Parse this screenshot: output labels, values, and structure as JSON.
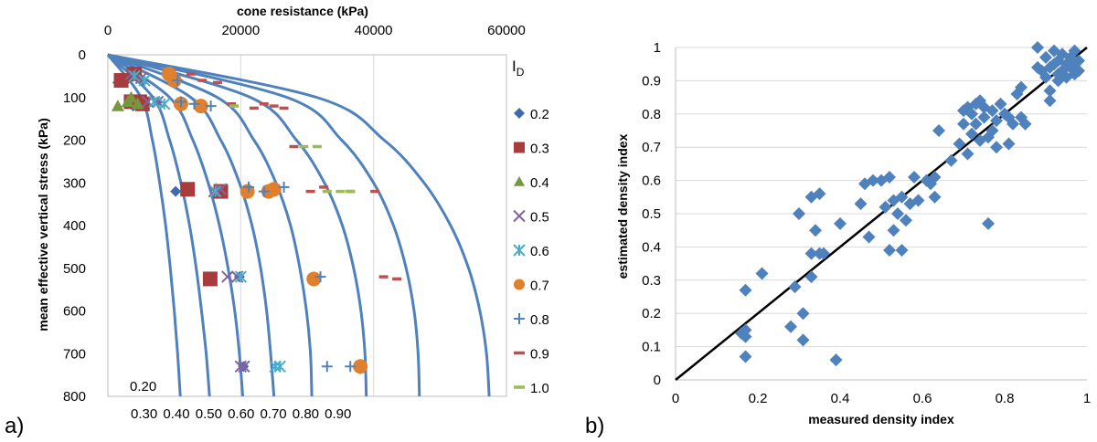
{
  "chart_data": [
    {
      "type": "scatter",
      "panel_label": "a)",
      "title": "",
      "xlabel": "cone resistance  (kPa)",
      "ylabel": "mean effective vertical stress (kPa)",
      "xlim": [
        0,
        60000
      ],
      "ylim": [
        0,
        800
      ],
      "x_ticks": [
        "0",
        "20000",
        "40000",
        "60000"
      ],
      "x_tick_values": [
        0,
        20000,
        40000,
        60000
      ],
      "y_ticks": [
        "0",
        "100",
        "200",
        "300",
        "400",
        "500",
        "600",
        "700",
        "800"
      ],
      "y_tick_values": [
        0,
        100,
        200,
        300,
        400,
        500,
        600,
        700,
        800
      ],
      "y_inverted": true,
      "x_axis_position": "top",
      "grid": "vertical",
      "legend_title": "I",
      "legend_title_sub": "D",
      "legend_position": "right",
      "colors": {
        "curve": "#4f81bd",
        "s020": "#3f6cae",
        "s030": "#a83b3b",
        "s040": "#77963f",
        "s050": "#8064a2",
        "s060": "#4bacc6",
        "s070": "#e07f2d",
        "s080": "#4f81bd",
        "s090": "#c0504d",
        "s100": "#9bbb59"
      },
      "curves": [
        {
          "label": "0.20",
          "q": [
            [
              0,
              0
            ],
            [
              100,
              5000
            ],
            [
              200,
              6700
            ],
            [
              300,
              7800
            ],
            [
              400,
              8700
            ],
            [
              500,
              9400
            ],
            [
              600,
              10000
            ],
            [
              700,
              10500
            ],
            [
              800,
              10900
            ]
          ]
        },
        {
          "label": "0.30",
          "q": [
            [
              0,
              0
            ],
            [
              100,
              6800
            ],
            [
              200,
              9300
            ],
            [
              300,
              11000
            ],
            [
              400,
              12300
            ],
            [
              500,
              13300
            ],
            [
              600,
              14100
            ],
            [
              700,
              14800
            ],
            [
              800,
              15300
            ]
          ]
        },
        {
          "label": "0.40",
          "q": [
            [
              0,
              0
            ],
            [
              100,
              9300
            ],
            [
              200,
              12800
            ],
            [
              300,
              15100
            ],
            [
              400,
              16800
            ],
            [
              500,
              18100
            ],
            [
              600,
              19100
            ],
            [
              700,
              19800
            ],
            [
              800,
              20300
            ]
          ]
        },
        {
          "label": "0.50",
          "q": [
            [
              0,
              0
            ],
            [
              100,
              12500
            ],
            [
              200,
              17000
            ],
            [
              300,
              19800
            ],
            [
              400,
              21700
            ],
            [
              500,
              23000
            ],
            [
              600,
              23900
            ],
            [
              700,
              24500
            ],
            [
              800,
              25000
            ]
          ]
        },
        {
          "label": "0.60",
          "q": [
            [
              0,
              0
            ],
            [
              100,
              16500
            ],
            [
              200,
              22000
            ],
            [
              300,
              25300
            ],
            [
              400,
              27500
            ],
            [
              500,
              28900
            ],
            [
              600,
              29900
            ],
            [
              700,
              30500
            ],
            [
              800,
              30700
            ]
          ]
        },
        {
          "label": "0.70",
          "q": [
            [
              0,
              0
            ],
            [
              100,
              21500
            ],
            [
              200,
              28400
            ],
            [
              300,
              32600
            ],
            [
              400,
              35300
            ],
            [
              500,
              37000
            ],
            [
              600,
              38100
            ],
            [
              700,
              38700
            ],
            [
              800,
              38900
            ]
          ]
        },
        {
          "label": "0.80",
          "q": [
            [
              0,
              0
            ],
            [
              100,
              27000
            ],
            [
              200,
              35200
            ],
            [
              300,
              40000
            ],
            [
              400,
              43000
            ],
            [
              500,
              44900
            ],
            [
              600,
              46100
            ],
            [
              700,
              46700
            ],
            [
              800,
              46900
            ]
          ]
        },
        {
          "label": "0.90",
          "q": [
            [
              0,
              0
            ],
            [
              100,
              31500
            ],
            [
              200,
              41600
            ],
            [
              300,
              47600
            ],
            [
              400,
              51600
            ],
            [
              500,
              54300
            ],
            [
              600,
              56000
            ],
            [
              700,
              57000
            ],
            [
              800,
              57400
            ]
          ]
        }
      ],
      "curve_label_rows": {
        "first": "0.20",
        "rest": "0.30 0.40 0.50 0.60 0.70 0.80 0.90"
      },
      "series": [
        {
          "name": "0.20",
          "marker": "diamond",
          "color": "#3f6cae",
          "points": [
            [
              1500,
              65
            ],
            [
              2000,
              55
            ],
            [
              2800,
              60
            ],
            [
              3200,
              110
            ],
            [
              3800,
              120
            ],
            [
              4200,
              45
            ],
            [
              5200,
              60
            ],
            [
              7500,
              110
            ],
            [
              10200,
              320
            ],
            [
              19800,
              520
            ],
            [
              20400,
              730
            ]
          ]
        },
        {
          "name": "0.30",
          "marker": "square",
          "color": "#a83b3b",
          "points": [
            [
              2000,
              60
            ],
            [
              3500,
              110
            ],
            [
              4000,
              45
            ],
            [
              4800,
              110
            ],
            [
              5200,
              115
            ],
            [
              12000,
              315
            ],
            [
              17000,
              320
            ],
            [
              15400,
              525
            ]
          ]
        },
        {
          "name": "0.40",
          "marker": "triangle",
          "color": "#77963f",
          "points": [
            [
              1500,
              120
            ],
            [
              3000,
              110
            ],
            [
              3500,
              100
            ],
            [
              4500,
              115
            ]
          ]
        },
        {
          "name": "0.50",
          "marker": "x",
          "color": "#8064a2",
          "points": [
            [
              3500,
              45
            ],
            [
              5000,
              55
            ],
            [
              6000,
              110
            ],
            [
              7500,
              110
            ],
            [
              16000,
              320
            ],
            [
              17000,
              315
            ],
            [
              18000,
              520
            ],
            [
              19500,
              520
            ],
            [
              20000,
              730
            ],
            [
              20500,
              730
            ]
          ]
        },
        {
          "name": "0.60",
          "marker": "asterisk",
          "color": "#4bacc6",
          "points": [
            [
              4000,
              50
            ],
            [
              5500,
              60
            ],
            [
              7000,
              110
            ],
            [
              8500,
              115
            ],
            [
              16200,
              320
            ],
            [
              20000,
              520
            ],
            [
              25200,
              730
            ],
            [
              25900,
              730
            ]
          ]
        },
        {
          "name": "0.70",
          "marker": "circle",
          "color": "#e07f2d",
          "points": [
            [
              9200,
              45
            ],
            [
              10000,
              60
            ],
            [
              11000,
              115
            ],
            [
              14000,
              120
            ],
            [
              21000,
              320
            ],
            [
              24200,
              320
            ],
            [
              25000,
              315
            ],
            [
              31000,
              525
            ],
            [
              38000,
              730
            ]
          ]
        },
        {
          "name": "0.80",
          "marker": "plus",
          "color": "#4f81bd",
          "points": [
            [
              10500,
              60
            ],
            [
              11000,
              110
            ],
            [
              13000,
              115
            ],
            [
              15500,
              120
            ],
            [
              21200,
              310
            ],
            [
              23500,
              320
            ],
            [
              26500,
              310
            ],
            [
              32000,
              520
            ],
            [
              33000,
              730
            ],
            [
              36500,
              730
            ]
          ]
        },
        {
          "name": "0.90",
          "marker": "dash",
          "color": "#c0504d",
          "points": [
            [
              12500,
              45
            ],
            [
              14200,
              60
            ],
            [
              16500,
              65
            ],
            [
              18600,
              115
            ],
            [
              22000,
              125
            ],
            [
              23500,
              115
            ],
            [
              25000,
              120
            ],
            [
              26500,
              125
            ],
            [
              28000,
              215
            ],
            [
              30500,
              320
            ],
            [
              32500,
              310
            ],
            [
              36500,
              320
            ],
            [
              40200,
              320
            ],
            [
              41500,
              520
            ],
            [
              43500,
              525
            ]
          ]
        },
        {
          "name": "1.00",
          "marker": "dash",
          "color": "#9bbb59",
          "points": [
            [
              19000,
              120
            ],
            [
              29500,
              215
            ],
            [
              31500,
              215
            ],
            [
              33000,
              320
            ],
            [
              35000,
              320
            ],
            [
              36500,
              320
            ]
          ]
        }
      ]
    },
    {
      "type": "scatter",
      "panel_label": "b)",
      "title": "",
      "xlabel": "measured density index",
      "ylabel": "estimated density index",
      "xlim": [
        0,
        1
      ],
      "ylim": [
        0,
        1
      ],
      "x_ticks": [
        "0",
        "0.2",
        "0.4",
        "0.6",
        "0.8",
        "1"
      ],
      "x_tick_values": [
        0,
        0.2,
        0.4,
        0.6,
        0.8,
        1
      ],
      "y_ticks": [
        "0",
        "0.1",
        "0.2",
        "0.3",
        "0.4",
        "0.5",
        "0.6",
        "0.7",
        "0.8",
        "0.9",
        "1"
      ],
      "y_tick_values": [
        0,
        0.1,
        0.2,
        0.3,
        0.4,
        0.5,
        0.6,
        0.7,
        0.8,
        0.9,
        1
      ],
      "grid": "horizontal",
      "fit_line": [
        [
          0,
          0
        ],
        [
          1,
          1
        ]
      ],
      "marker_color": "#4f81bd",
      "points": [
        [
          0.16,
          0.14
        ],
        [
          0.17,
          0.13
        ],
        [
          0.17,
          0.15
        ],
        [
          0.17,
          0.07
        ],
        [
          0.17,
          0.27
        ],
        [
          0.21,
          0.32
        ],
        [
          0.28,
          0.16
        ],
        [
          0.29,
          0.28
        ],
        [
          0.3,
          0.5
        ],
        [
          0.31,
          0.2
        ],
        [
          0.31,
          0.12
        ],
        [
          0.33,
          0.55
        ],
        [
          0.33,
          0.38
        ],
        [
          0.33,
          0.31
        ],
        [
          0.34,
          0.45
        ],
        [
          0.35,
          0.56
        ],
        [
          0.35,
          0.38
        ],
        [
          0.36,
          0.38
        ],
        [
          0.39,
          0.06
        ],
        [
          0.4,
          0.47
        ],
        [
          0.45,
          0.53
        ],
        [
          0.46,
          0.59
        ],
        [
          0.47,
          0.43
        ],
        [
          0.48,
          0.6
        ],
        [
          0.5,
          0.6
        ],
        [
          0.51,
          0.52
        ],
        [
          0.52,
          0.39
        ],
        [
          0.52,
          0.61
        ],
        [
          0.53,
          0.54
        ],
        [
          0.53,
          0.45
        ],
        [
          0.54,
          0.5
        ],
        [
          0.55,
          0.39
        ],
        [
          0.55,
          0.55
        ],
        [
          0.56,
          0.48
        ],
        [
          0.57,
          0.53
        ],
        [
          0.58,
          0.61
        ],
        [
          0.59,
          0.54
        ],
        [
          0.61,
          0.6
        ],
        [
          0.62,
          0.59
        ],
        [
          0.63,
          0.55
        ],
        [
          0.63,
          0.61
        ],
        [
          0.64,
          0.75
        ],
        [
          0.67,
          0.66
        ],
        [
          0.69,
          0.71
        ],
        [
          0.7,
          0.77
        ],
        [
          0.7,
          0.81
        ],
        [
          0.71,
          0.68
        ],
        [
          0.71,
          0.82
        ],
        [
          0.72,
          0.74
        ],
        [
          0.72,
          0.8
        ],
        [
          0.73,
          0.83
        ],
        [
          0.73,
          0.77
        ],
        [
          0.74,
          0.84
        ],
        [
          0.74,
          0.72
        ],
        [
          0.75,
          0.82
        ],
        [
          0.75,
          0.79
        ],
        [
          0.76,
          0.47
        ],
        [
          0.76,
          0.73
        ],
        [
          0.77,
          0.75
        ],
        [
          0.77,
          0.81
        ],
        [
          0.78,
          0.7
        ],
        [
          0.78,
          0.78
        ],
        [
          0.79,
          0.83
        ],
        [
          0.8,
          0.8
        ],
        [
          0.81,
          0.71
        ],
        [
          0.81,
          0.79
        ],
        [
          0.82,
          0.77
        ],
        [
          0.83,
          0.86
        ],
        [
          0.84,
          0.79
        ],
        [
          0.84,
          0.88
        ],
        [
          0.85,
          0.77
        ],
        [
          0.88,
          0.94
        ],
        [
          0.88,
          1.0
        ],
        [
          0.89,
          0.93
        ],
        [
          0.9,
          0.97
        ],
        [
          0.9,
          0.91
        ],
        [
          0.91,
          0.87
        ],
        [
          0.91,
          0.84
        ],
        [
          0.91,
          0.94
        ],
        [
          0.92,
          0.99
        ],
        [
          0.92,
          0.95
        ],
        [
          0.93,
          0.92
        ],
        [
          0.93,
          0.96
        ],
        [
          0.93,
          0.9
        ],
        [
          0.94,
          0.98
        ],
        [
          0.94,
          0.93
        ],
        [
          0.95,
          0.95
        ],
        [
          0.95,
          0.91
        ],
        [
          0.96,
          0.97
        ],
        [
          0.96,
          0.94
        ],
        [
          0.97,
          0.92
        ],
        [
          0.97,
          0.99
        ],
        [
          0.97,
          0.95
        ],
        [
          0.98,
          0.93
        ],
        [
          0.98,
          0.96
        ]
      ]
    }
  ]
}
